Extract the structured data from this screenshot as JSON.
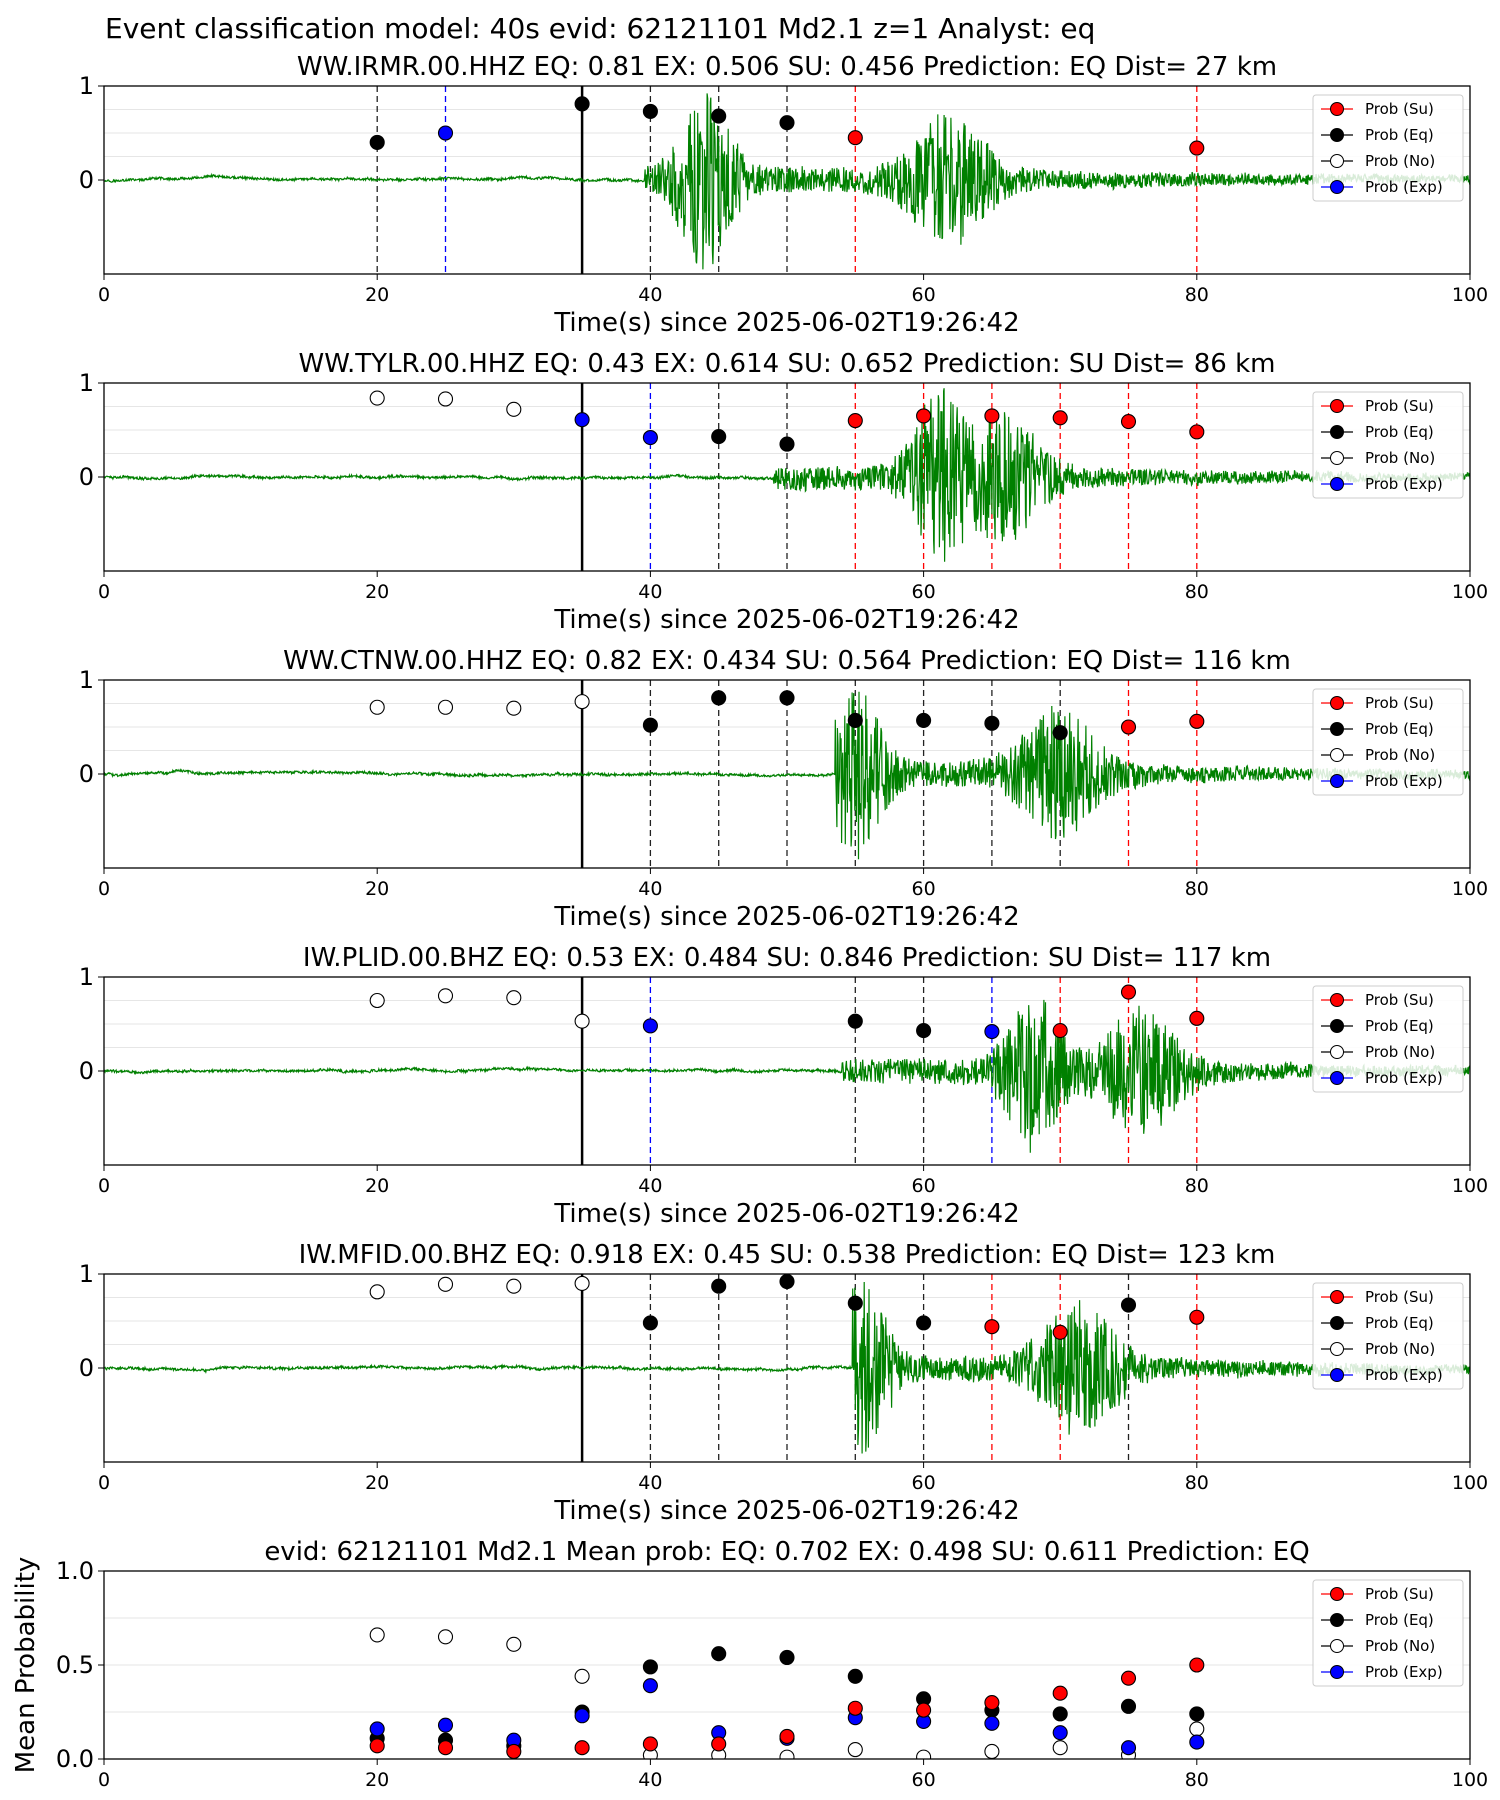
{
  "figure": {
    "suptitle": "Event classification model: 40s evid: 62121101 Md2.1 z=1 Analyst: eq"
  },
  "legend": [
    "Prob (Su)",
    "Prob (Eq)",
    "Prob (No)",
    "Prob (Exp)"
  ],
  "colors": {
    "su": "#ff0000",
    "eq": "#000000",
    "no": "#ffffff",
    "exp": "#0000ff",
    "waveform": "#008000",
    "axes": "#000000"
  },
  "chart_data": [
    {
      "type": "scatter",
      "title": "WW.IRMR.00.HHZ   EQ: 0.81  EX: 0.506  SU: 0.456   Prediction: EQ    Dist= 27 km",
      "xlabel": "Time(s) since 2025-06-02T19:26:42",
      "ylabel": "",
      "xlim": [
        0,
        100
      ],
      "ylim": [
        -1,
        1
      ],
      "xticks": [
        "0",
        "20",
        "40",
        "60",
        "80",
        "100"
      ],
      "yticks": [
        "0",
        "1"
      ],
      "legend": "top-right",
      "waveform": {
        "color": "green",
        "onset": 39.5,
        "peaks": [
          44,
          62
        ],
        "amplitude": 0.95
      },
      "reference_line": 35,
      "points": [
        {
          "x": 20,
          "y": 0.4,
          "class": "eq"
        },
        {
          "x": 25,
          "y": 0.5,
          "class": "exp"
        },
        {
          "x": 35,
          "y": 0.81,
          "class": "eq"
        },
        {
          "x": 40,
          "y": 0.73,
          "class": "eq"
        },
        {
          "x": 45,
          "y": 0.68,
          "class": "eq"
        },
        {
          "x": 50,
          "y": 0.61,
          "class": "eq"
        },
        {
          "x": 55,
          "y": 0.45,
          "class": "su"
        },
        {
          "x": 80,
          "y": 0.34,
          "class": "su"
        }
      ]
    },
    {
      "type": "scatter",
      "title": "WW.TYLR.00.HHZ   EQ: 0.43  EX: 0.614  SU: 0.652   Prediction: SU    Dist= 86 km",
      "xlabel": "Time(s) since 2025-06-02T19:26:42",
      "ylabel": "",
      "xlim": [
        0,
        100
      ],
      "ylim": [
        -1,
        1
      ],
      "xticks": [
        "0",
        "20",
        "40",
        "60",
        "80",
        "100"
      ],
      "yticks": [
        "0",
        "1"
      ],
      "legend": "top-right",
      "waveform": {
        "color": "green",
        "onset": 49,
        "peaks": [
          61,
          66
        ],
        "amplitude": 0.9
      },
      "reference_line": 35,
      "points": [
        {
          "x": 20,
          "y": 0.84,
          "class": "no"
        },
        {
          "x": 25,
          "y": 0.83,
          "class": "no"
        },
        {
          "x": 30,
          "y": 0.72,
          "class": "no"
        },
        {
          "x": 35,
          "y": 0.61,
          "class": "exp"
        },
        {
          "x": 40,
          "y": 0.42,
          "class": "exp"
        },
        {
          "x": 45,
          "y": 0.43,
          "class": "eq"
        },
        {
          "x": 50,
          "y": 0.35,
          "class": "eq"
        },
        {
          "x": 55,
          "y": 0.6,
          "class": "su"
        },
        {
          "x": 60,
          "y": 0.65,
          "class": "su"
        },
        {
          "x": 65,
          "y": 0.65,
          "class": "su"
        },
        {
          "x": 70,
          "y": 0.63,
          "class": "su"
        },
        {
          "x": 75,
          "y": 0.59,
          "class": "su"
        },
        {
          "x": 80,
          "y": 0.48,
          "class": "su"
        }
      ]
    },
    {
      "type": "scatter",
      "title": "WW.CTNW.00.HHZ   EQ: 0.82  EX: 0.434  SU: 0.564   Prediction: EQ    Dist= 116 km",
      "xlabel": "Time(s) since 2025-06-02T19:26:42",
      "ylabel": "",
      "xlim": [
        0,
        100
      ],
      "ylim": [
        -1,
        1
      ],
      "xticks": [
        "0",
        "20",
        "40",
        "60",
        "80",
        "100"
      ],
      "yticks": [
        "0",
        "1"
      ],
      "legend": "top-right",
      "waveform": {
        "color": "green",
        "onset": 53.5,
        "peaks": [
          55,
          70
        ],
        "amplitude": 0.95
      },
      "reference_line": 35,
      "points": [
        {
          "x": 20,
          "y": 0.71,
          "class": "no"
        },
        {
          "x": 25,
          "y": 0.71,
          "class": "no"
        },
        {
          "x": 30,
          "y": 0.7,
          "class": "no"
        },
        {
          "x": 35,
          "y": 0.77,
          "class": "no"
        },
        {
          "x": 40,
          "y": 0.52,
          "class": "eq"
        },
        {
          "x": 45,
          "y": 0.81,
          "class": "eq"
        },
        {
          "x": 50,
          "y": 0.81,
          "class": "eq"
        },
        {
          "x": 55,
          "y": 0.57,
          "class": "eq"
        },
        {
          "x": 60,
          "y": 0.57,
          "class": "eq"
        },
        {
          "x": 65,
          "y": 0.54,
          "class": "eq"
        },
        {
          "x": 70,
          "y": 0.44,
          "class": "eq"
        },
        {
          "x": 75,
          "y": 0.5,
          "class": "su"
        },
        {
          "x": 80,
          "y": 0.56,
          "class": "su"
        }
      ]
    },
    {
      "type": "scatter",
      "title": "IW.PLID.00.BHZ   EQ: 0.53  EX: 0.484  SU: 0.846   Prediction: SU    Dist= 117 km",
      "xlabel": "Time(s) since 2025-06-02T19:26:42",
      "ylabel": "",
      "xlim": [
        0,
        100
      ],
      "ylim": [
        -1,
        1
      ],
      "xticks": [
        "0",
        "20",
        "40",
        "60",
        "80",
        "100"
      ],
      "yticks": [
        "0",
        "1"
      ],
      "legend": "top-right",
      "waveform": {
        "color": "green",
        "onset": 54,
        "peaks": [
          68,
          76
        ],
        "amplitude": 0.9
      },
      "reference_line": 35,
      "points": [
        {
          "x": 20,
          "y": 0.75,
          "class": "no"
        },
        {
          "x": 25,
          "y": 0.8,
          "class": "no"
        },
        {
          "x": 30,
          "y": 0.78,
          "class": "no"
        },
        {
          "x": 35,
          "y": 0.53,
          "class": "no"
        },
        {
          "x": 40,
          "y": 0.48,
          "class": "exp"
        },
        {
          "x": 55,
          "y": 0.53,
          "class": "eq"
        },
        {
          "x": 60,
          "y": 0.43,
          "class": "eq"
        },
        {
          "x": 65,
          "y": 0.42,
          "class": "exp"
        },
        {
          "x": 70,
          "y": 0.43,
          "class": "su"
        },
        {
          "x": 75,
          "y": 0.84,
          "class": "su"
        },
        {
          "x": 80,
          "y": 0.56,
          "class": "su"
        }
      ]
    },
    {
      "type": "scatter",
      "title": "IW.MFID.00.BHZ   EQ: 0.918  EX: 0.45  SU: 0.538   Prediction: EQ    Dist= 123 km",
      "xlabel": "Time(s) since 2025-06-02T19:26:42",
      "ylabel": "",
      "xlim": [
        0,
        100
      ],
      "ylim": [
        -1,
        1
      ],
      "xticks": [
        "0",
        "20",
        "40",
        "60",
        "80",
        "100"
      ],
      "yticks": [
        "0",
        "1"
      ],
      "legend": "top-right",
      "waveform": {
        "color": "green",
        "onset": 54.8,
        "peaks": [
          55.5,
          71.5
        ],
        "amplitude": 0.95
      },
      "reference_line": 35,
      "points": [
        {
          "x": 20,
          "y": 0.81,
          "class": "no"
        },
        {
          "x": 25,
          "y": 0.89,
          "class": "no"
        },
        {
          "x": 30,
          "y": 0.87,
          "class": "no"
        },
        {
          "x": 35,
          "y": 0.9,
          "class": "no"
        },
        {
          "x": 40,
          "y": 0.48,
          "class": "eq"
        },
        {
          "x": 45,
          "y": 0.87,
          "class": "eq"
        },
        {
          "x": 50,
          "y": 0.92,
          "class": "eq"
        },
        {
          "x": 55,
          "y": 0.69,
          "class": "eq"
        },
        {
          "x": 60,
          "y": 0.48,
          "class": "eq"
        },
        {
          "x": 65,
          "y": 0.44,
          "class": "su"
        },
        {
          "x": 70,
          "y": 0.38,
          "class": "su"
        },
        {
          "x": 75,
          "y": 0.67,
          "class": "eq"
        },
        {
          "x": 80,
          "y": 0.54,
          "class": "su"
        }
      ]
    },
    {
      "type": "scatter",
      "title": "evid: 62121101  Md2.1   Mean prob:   EQ: 0.702  EX: 0.498  SU: 0.611   Prediction: EQ",
      "xlabel": "",
      "ylabel": "Mean Probability",
      "xlim": [
        0,
        100
      ],
      "ylim": [
        0,
        1
      ],
      "xticks": [
        "0",
        "20",
        "40",
        "60",
        "80",
        "100"
      ],
      "yticks": [
        "0.0",
        "0.5",
        "1.0"
      ],
      "legend": "top-right",
      "x": [
        20,
        25,
        30,
        35,
        40,
        45,
        50,
        55,
        60,
        65,
        70,
        75,
        80
      ],
      "series": [
        {
          "name": "Prob (No)",
          "class": "no",
          "values": [
            0.66,
            0.65,
            0.61,
            0.44,
            0.02,
            0.02,
            0.01,
            0.05,
            0.01,
            0.04,
            0.06,
            0.02,
            0.16
          ]
        },
        {
          "name": "Prob (Eq)",
          "class": "eq",
          "values": [
            0.11,
            0.1,
            0.07,
            0.25,
            0.49,
            0.56,
            0.54,
            0.44,
            0.32,
            0.26,
            0.24,
            0.28,
            0.24
          ]
        },
        {
          "name": "Prob (Exp)",
          "class": "exp",
          "values": [
            0.16,
            0.18,
            0.1,
            0.23,
            0.39,
            0.14,
            0.11,
            0.22,
            0.2,
            0.19,
            0.14,
            0.06,
            0.09
          ]
        },
        {
          "name": "Prob (Su)",
          "class": "su",
          "values": [
            0.07,
            0.06,
            0.04,
            0.06,
            0.08,
            0.08,
            0.12,
            0.27,
            0.26,
            0.3,
            0.35,
            0.43,
            0.5
          ]
        }
      ]
    }
  ]
}
